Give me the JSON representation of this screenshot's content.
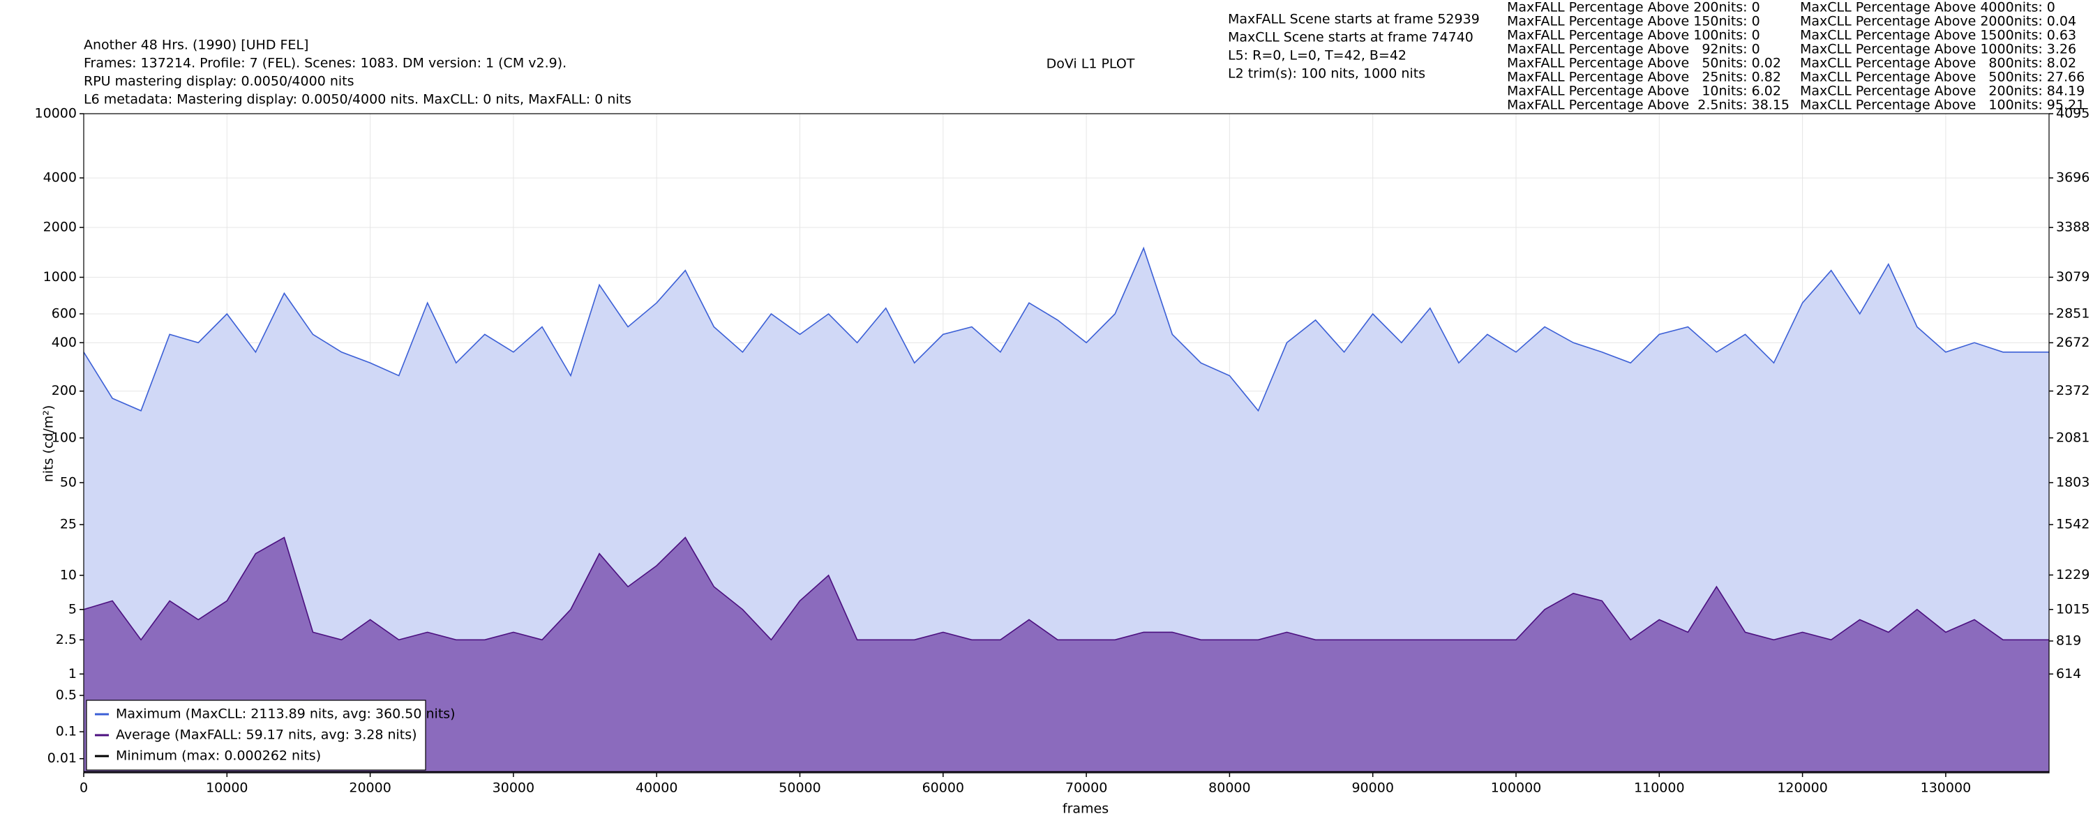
{
  "chart_data": {
    "type": "line",
    "title": "DoVi L1 PLOT",
    "header_lines": [
      "Another 48 Hrs. (1990) [UHD FEL]",
      "Frames: 137214. Profile: 7 (FEL). Scenes: 1083. DM version: 1 (CM v2.9).",
      "RPU mastering display: 0.0050/4000 nits",
      "L6 metadata: Mastering display: 0.0050/4000 nits. MaxCLL: 0 nits, MaxFALL: 0 nits"
    ],
    "scene_lines": [
      "MaxFALL Scene starts at frame 52939",
      "MaxCLL Scene starts at frame 74740",
      "L5: R=0, L=0, T=42, B=42",
      "L2 trim(s): 100 nits, 1000 nits"
    ],
    "maxfall_stats": [
      "MaxFALL Percentage Above 200nits: 0",
      "MaxFALL Percentage Above 150nits: 0",
      "MaxFALL Percentage Above 100nits: 0",
      "MaxFALL Percentage Above   92nits: 0",
      "MaxFALL Percentage Above   50nits: 0.02",
      "MaxFALL Percentage Above   25nits: 0.82",
      "MaxFALL Percentage Above   10nits: 6.02",
      "MaxFALL Percentage Above  2.5nits: 38.15"
    ],
    "maxcll_stats": [
      "MaxCLL Percentage Above 4000nits: 0",
      "MaxCLL Percentage Above 2000nits: 0.04",
      "MaxCLL Percentage Above 1500nits: 0.63",
      "MaxCLL Percentage Above 1000nits: 3.26",
      "MaxCLL Percentage Above   800nits: 8.02",
      "MaxCLL Percentage Above   500nits: 27.66",
      "MaxCLL Percentage Above   200nits: 84.19",
      "MaxCLL Percentage Above   100nits: 95.21"
    ],
    "x_label": "frames",
    "y_label": "nits (cd/m²)",
    "y_scale": "pq",
    "grid": true,
    "legend": "lower left",
    "xlim": [
      0,
      137214
    ],
    "xticks": [
      0,
      10000,
      20000,
      30000,
      40000,
      50000,
      60000,
      70000,
      80000,
      90000,
      100000,
      110000,
      120000,
      130000
    ],
    "ylim": [
      0,
      10000
    ],
    "yticks": [
      10000,
      4000,
      2000,
      1000,
      600,
      400,
      200,
      100,
      50,
      25,
      10,
      5,
      2.5,
      1,
      0.5,
      0.1,
      0.01
    ],
    "y2lim": [
      0,
      4095
    ],
    "y2ticks": [
      4095,
      3696,
      3388,
      3079,
      2851,
      2672,
      2372,
      2081,
      1803,
      1542,
      1229,
      1015,
      819,
      614
    ],
    "x": [
      0,
      2000,
      4000,
      6000,
      8000,
      10000,
      12000,
      14000,
      16000,
      18000,
      20000,
      22000,
      24000,
      26000,
      28000,
      30000,
      32000,
      34000,
      36000,
      38000,
      40000,
      42000,
      44000,
      46000,
      48000,
      50000,
      52000,
      54000,
      56000,
      58000,
      60000,
      62000,
      64000,
      66000,
      68000,
      70000,
      72000,
      74000,
      76000,
      78000,
      80000,
      82000,
      84000,
      86000,
      88000,
      90000,
      92000,
      94000,
      96000,
      98000,
      100000,
      102000,
      104000,
      106000,
      108000,
      110000,
      112000,
      114000,
      116000,
      118000,
      120000,
      122000,
      124000,
      126000,
      128000,
      130000,
      132000,
      134000,
      136000,
      137214
    ],
    "series": [
      {
        "name": "Maximum (MaxCLL: 2113.89 nits, avg: 360.50 nits)",
        "color": "#3b5fd6",
        "fill": "#d0d8f6",
        "values": [
          350,
          180,
          150,
          450,
          400,
          600,
          350,
          800,
          450,
          350,
          300,
          250,
          700,
          300,
          450,
          350,
          500,
          250,
          900,
          500,
          700,
          1100,
          500,
          350,
          600,
          450,
          600,
          400,
          650,
          300,
          450,
          500,
          350,
          700,
          550,
          400,
          600,
          1500,
          450,
          300,
          250,
          150,
          400,
          550,
          350,
          600,
          400,
          650,
          300,
          450,
          350,
          500,
          400,
          350,
          300,
          450,
          500,
          350,
          450,
          300,
          700,
          1100,
          600,
          1200,
          500,
          350,
          400,
          350,
          350,
          350
        ]
      },
      {
        "name": "Average (MaxFALL: 59.17 nits, avg: 3.28 nits)",
        "color": "#4b0f7f",
        "fill": "#8b6bbd",
        "values": [
          5,
          6,
          2.5,
          6,
          4,
          6,
          15,
          20,
          3,
          2.5,
          4,
          2.5,
          3,
          2.5,
          2.5,
          3,
          2.5,
          5,
          15,
          8,
          12,
          20,
          8,
          5,
          2.5,
          6,
          10,
          2.5,
          2.5,
          2.5,
          3,
          2.5,
          2.5,
          4,
          2.5,
          2.5,
          2.5,
          3,
          3,
          2.5,
          2.5,
          2.5,
          3,
          2.5,
          2.5,
          2.5,
          2.5,
          2.5,
          2.5,
          2.5,
          2.5,
          5,
          7,
          6,
          2.5,
          4,
          3,
          8,
          3,
          2.5,
          3,
          2.5,
          4,
          3,
          5,
          3,
          4,
          2.5,
          2.5,
          2.5
        ]
      },
      {
        "name": "Minimum (max: 0.000262 nits)",
        "color": "#000000",
        "values": [
          0.0001,
          0.0001,
          0.0001,
          0.0001,
          0.0001,
          0.0001,
          0.0001,
          0.0001,
          0.0001,
          0.0001,
          0.0001,
          0.0001,
          0.0001,
          0.0001,
          0.0001,
          0.0001,
          0.0001,
          0.0001,
          0.0001,
          0.0001,
          0.0001,
          0.0001,
          0.0001,
          0.0001,
          0.0001,
          0.0001,
          0.0001,
          0.0001,
          0.0001,
          0.0001,
          0.0001,
          0.0001,
          0.0001,
          0.0001,
          0.0001,
          0.0001,
          0.0001,
          0.0001,
          0.0001,
          0.0001,
          0.0001,
          0.0001,
          0.0001,
          0.0001,
          0.0001,
          0.0001,
          0.0001,
          0.0001,
          0.0001,
          0.0001,
          0.0001,
          0.0001,
          0.0001,
          0.0001,
          0.0001,
          0.0001,
          0.0001,
          0.0001,
          0.0001,
          0.0001,
          0.0001,
          0.0001,
          0.0001,
          0.0001,
          0.0001,
          0.0001,
          0.0001,
          0.0001,
          0.0001,
          0.0001
        ]
      }
    ]
  }
}
